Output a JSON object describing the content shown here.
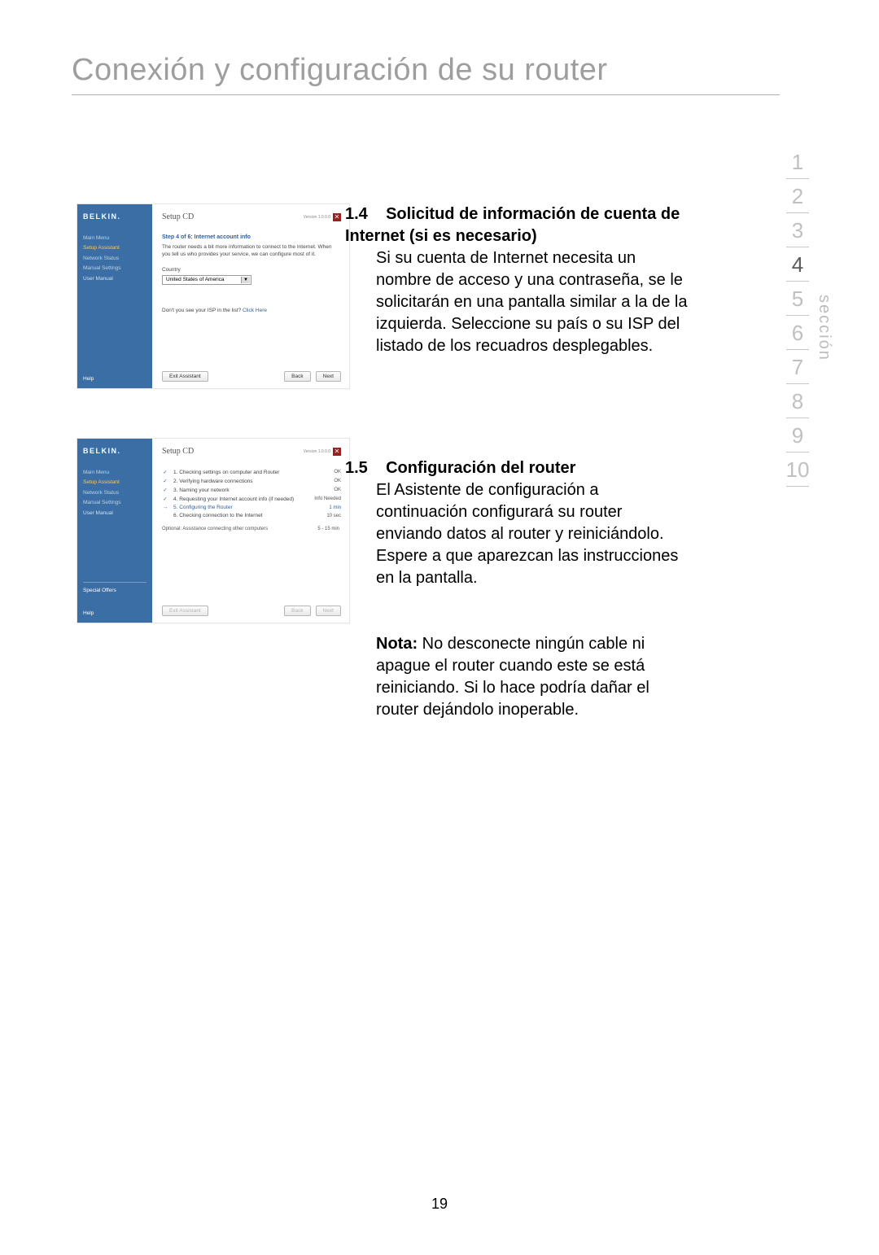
{
  "page": {
    "title": "Conexión y configuración de su router",
    "number": "19"
  },
  "sectionNav": {
    "label": "sección",
    "items": [
      "1",
      "2",
      "3",
      "4",
      "5",
      "6",
      "7",
      "8",
      "9",
      "10"
    ],
    "active_index": 3,
    "active_color": "#5c5c5c",
    "inactive_color": "#c0c0c0"
  },
  "sections": {
    "s14": {
      "num": "1.4",
      "head": "Solicitud de información de cuenta de Internet (si es necesario)",
      "body": "Si su cuenta de Internet necesita un nombre de acceso y una contraseña, se le solicitarán en una pantalla similar a la de la izquierda. Seleccione su país o su ISP del listado de los recuadros desplegables."
    },
    "s15": {
      "num": "1.5",
      "head": "Configuración del router",
      "body": "El Asistente de configuración a continuación configurará su router enviando datos al router y reiniciándolo. Espere a que aparezcan las instrucciones en la pantalla."
    },
    "note": {
      "label": "Nota:",
      "body": " No desconecte ningún cable ni apague el router cuando este se está reiniciando. Si lo hace podría dañar el router dejándolo inoperable."
    }
  },
  "card1": {
    "brand": "BELKIN.",
    "setup_title": "Setup CD",
    "version": "Version 1.0.0.0",
    "nav": {
      "main_menu": "Main Menu",
      "setup_assistant": "Setup Assistant",
      "network_status": "Network Status",
      "manual_settings": "Manual Settings",
      "user_manual": "User Manual"
    },
    "help": "Help",
    "step_title": "Step 4 of 6: Internet account info",
    "step_desc": "The router needs a bit more information to connect to the Internet. When you tell us who provides your service, we can configure most of it.",
    "country_label": "Country",
    "country_value": "United States of America",
    "isp_prompt": "Don't you see your ISP in the list?",
    "isp_link": "Click Here",
    "btn_exit": "Exit Assistant",
    "btn_back": "Back",
    "btn_next": "Next"
  },
  "card2": {
    "brand": "BELKIN.",
    "setup_title": "Setup CD",
    "version": "Version 1.0.0.0",
    "nav": {
      "main_menu": "Main Menu",
      "setup_assistant": "Setup Assistant",
      "network_status": "Network Status",
      "manual_settings": "Manual Settings",
      "user_manual": "User Manual"
    },
    "special": "Special Offers",
    "help": "Help",
    "rows": [
      {
        "icon": "✓",
        "text": "1. Checking settings on computer and Router",
        "status": "OK"
      },
      {
        "icon": "✓",
        "text": "2. Verifying hardware connections",
        "status": "OK"
      },
      {
        "icon": "✓",
        "text": "3. Naming your network",
        "status": "OK"
      },
      {
        "icon": "✓",
        "text": "4. Requesting your Internet account info (if needed)",
        "status": "Info Needed"
      },
      {
        "icon": "→",
        "text": "5. Configuring the Router",
        "status": "1 min",
        "hl": true
      },
      {
        "icon": "",
        "text": "6. Checking connection to the Internet",
        "status": "10 sec"
      }
    ],
    "optional": {
      "text": "Optional: Assistance connecting other computers",
      "status": "5 - 15 min"
    },
    "btn_exit": "Exit Assistant",
    "btn_back": "Back",
    "btn_next": "Next"
  },
  "colors": {
    "sidebar_bg": "#3b6ea5",
    "highlight": "#ffc94a",
    "link_blue": "#2f61a0",
    "title_gray": "#9e9e9e"
  }
}
